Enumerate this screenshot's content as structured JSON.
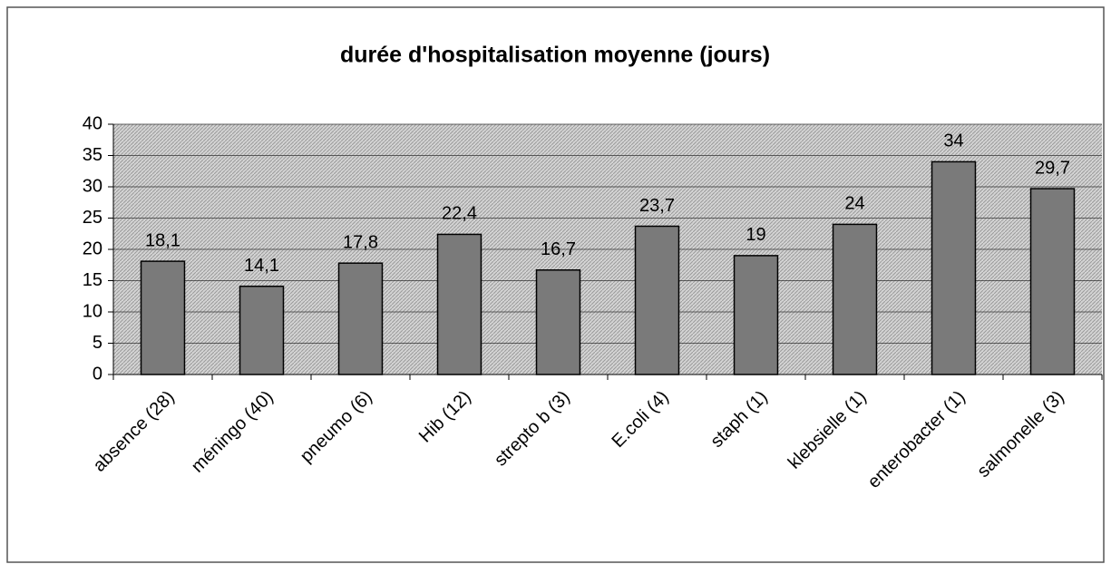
{
  "chart_data": {
    "type": "bar",
    "title": "durée d'hospitalisation moyenne (jours)",
    "categories": [
      "absence (28)",
      "méningo (40)",
      "pneumo (6)",
      "Hib (12)",
      "strepto b (3)",
      "E.coli (4)",
      "staph (1)",
      "klebsielle (1)",
      "enterobacter (1)",
      "salmonelle (3)"
    ],
    "values": [
      18.1,
      14.1,
      17.8,
      22.4,
      16.7,
      23.7,
      19,
      24,
      34,
      29.7
    ],
    "value_labels": [
      "18,1",
      "14,1",
      "17,8",
      "22,4",
      "16,7",
      "23,7",
      "19",
      "24",
      "34",
      "29,7"
    ],
    "color": "#7a7a7a",
    "ylim": [
      0,
      40
    ],
    "yticks": [
      0,
      5,
      10,
      15,
      20,
      25,
      30,
      35,
      40
    ],
    "grid": true
  }
}
